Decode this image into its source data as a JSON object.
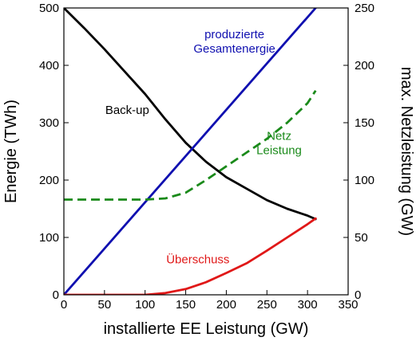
{
  "chart_data": {
    "type": "line",
    "xlabel": "installierte EE Leistung (GW)",
    "ylabel_left": "Energie (TWh)",
    "ylabel_right": "max. Netzleistung (GW)",
    "xlim": [
      0,
      350
    ],
    "ylim_left": [
      0,
      500
    ],
    "ylim_right": [
      0,
      250
    ],
    "x_ticks": [
      "0",
      "50",
      "100",
      "150",
      "200",
      "250",
      "300",
      "350"
    ],
    "y_left_ticks": [
      "0",
      "100",
      "200",
      "300",
      "400",
      "500"
    ],
    "y_right_ticks": [
      "0",
      "50",
      "100",
      "150",
      "200",
      "250"
    ],
    "grid": false,
    "series": [
      {
        "name": "Back-up",
        "axis": "left",
        "color": "#000000",
        "dash": "solid",
        "x": [
          0,
          25,
          50,
          75,
          100,
          125,
          150,
          175,
          200,
          225,
          250,
          275,
          300,
          310
        ],
        "y": [
          500,
          465,
          428,
          389,
          350,
          306,
          265,
          232,
          205,
          185,
          165,
          150,
          138,
          132
        ]
      },
      {
        "name": "produzierte Gesamtenergie",
        "axis": "left",
        "color": "#1010b0",
        "dash": "solid",
        "x": [
          0,
          310
        ],
        "y": [
          0,
          500
        ]
      },
      {
        "name": "Netz Leistung",
        "axis": "right",
        "color": "#1a8a1a",
        "dash": "dashed",
        "x": [
          0,
          50,
          100,
          125,
          150,
          175,
          200,
          225,
          250,
          275,
          300,
          310
        ],
        "y": [
          83,
          83,
          83,
          84,
          89,
          100,
          112,
          124,
          136,
          150,
          167,
          178
        ]
      },
      {
        "name": "Überschuss",
        "axis": "left",
        "color": "#e01818",
        "dash": "solid",
        "x": [
          0,
          100,
          125,
          150,
          175,
          200,
          225,
          250,
          275,
          300,
          310
        ],
        "y": [
          0,
          0,
          3,
          10,
          22,
          38,
          55,
          77,
          100,
          123,
          133
        ]
      }
    ],
    "annotations": [
      {
        "lines": [
          "produzierte",
          "Gesamtenergie"
        ],
        "color": "#1010b0",
        "x": 210,
        "y": 447
      },
      {
        "lines": [
          "Back-up"
        ],
        "color": "#000000",
        "x": 78,
        "y": 315
      },
      {
        "lines": [
          "Netz",
          "Leistung"
        ],
        "color": "#1a8a1a",
        "x": 265,
        "y": 270
      },
      {
        "lines": [
          "Überschuss"
        ],
        "color": "#e01818",
        "x": 165,
        "y": 55
      }
    ]
  }
}
